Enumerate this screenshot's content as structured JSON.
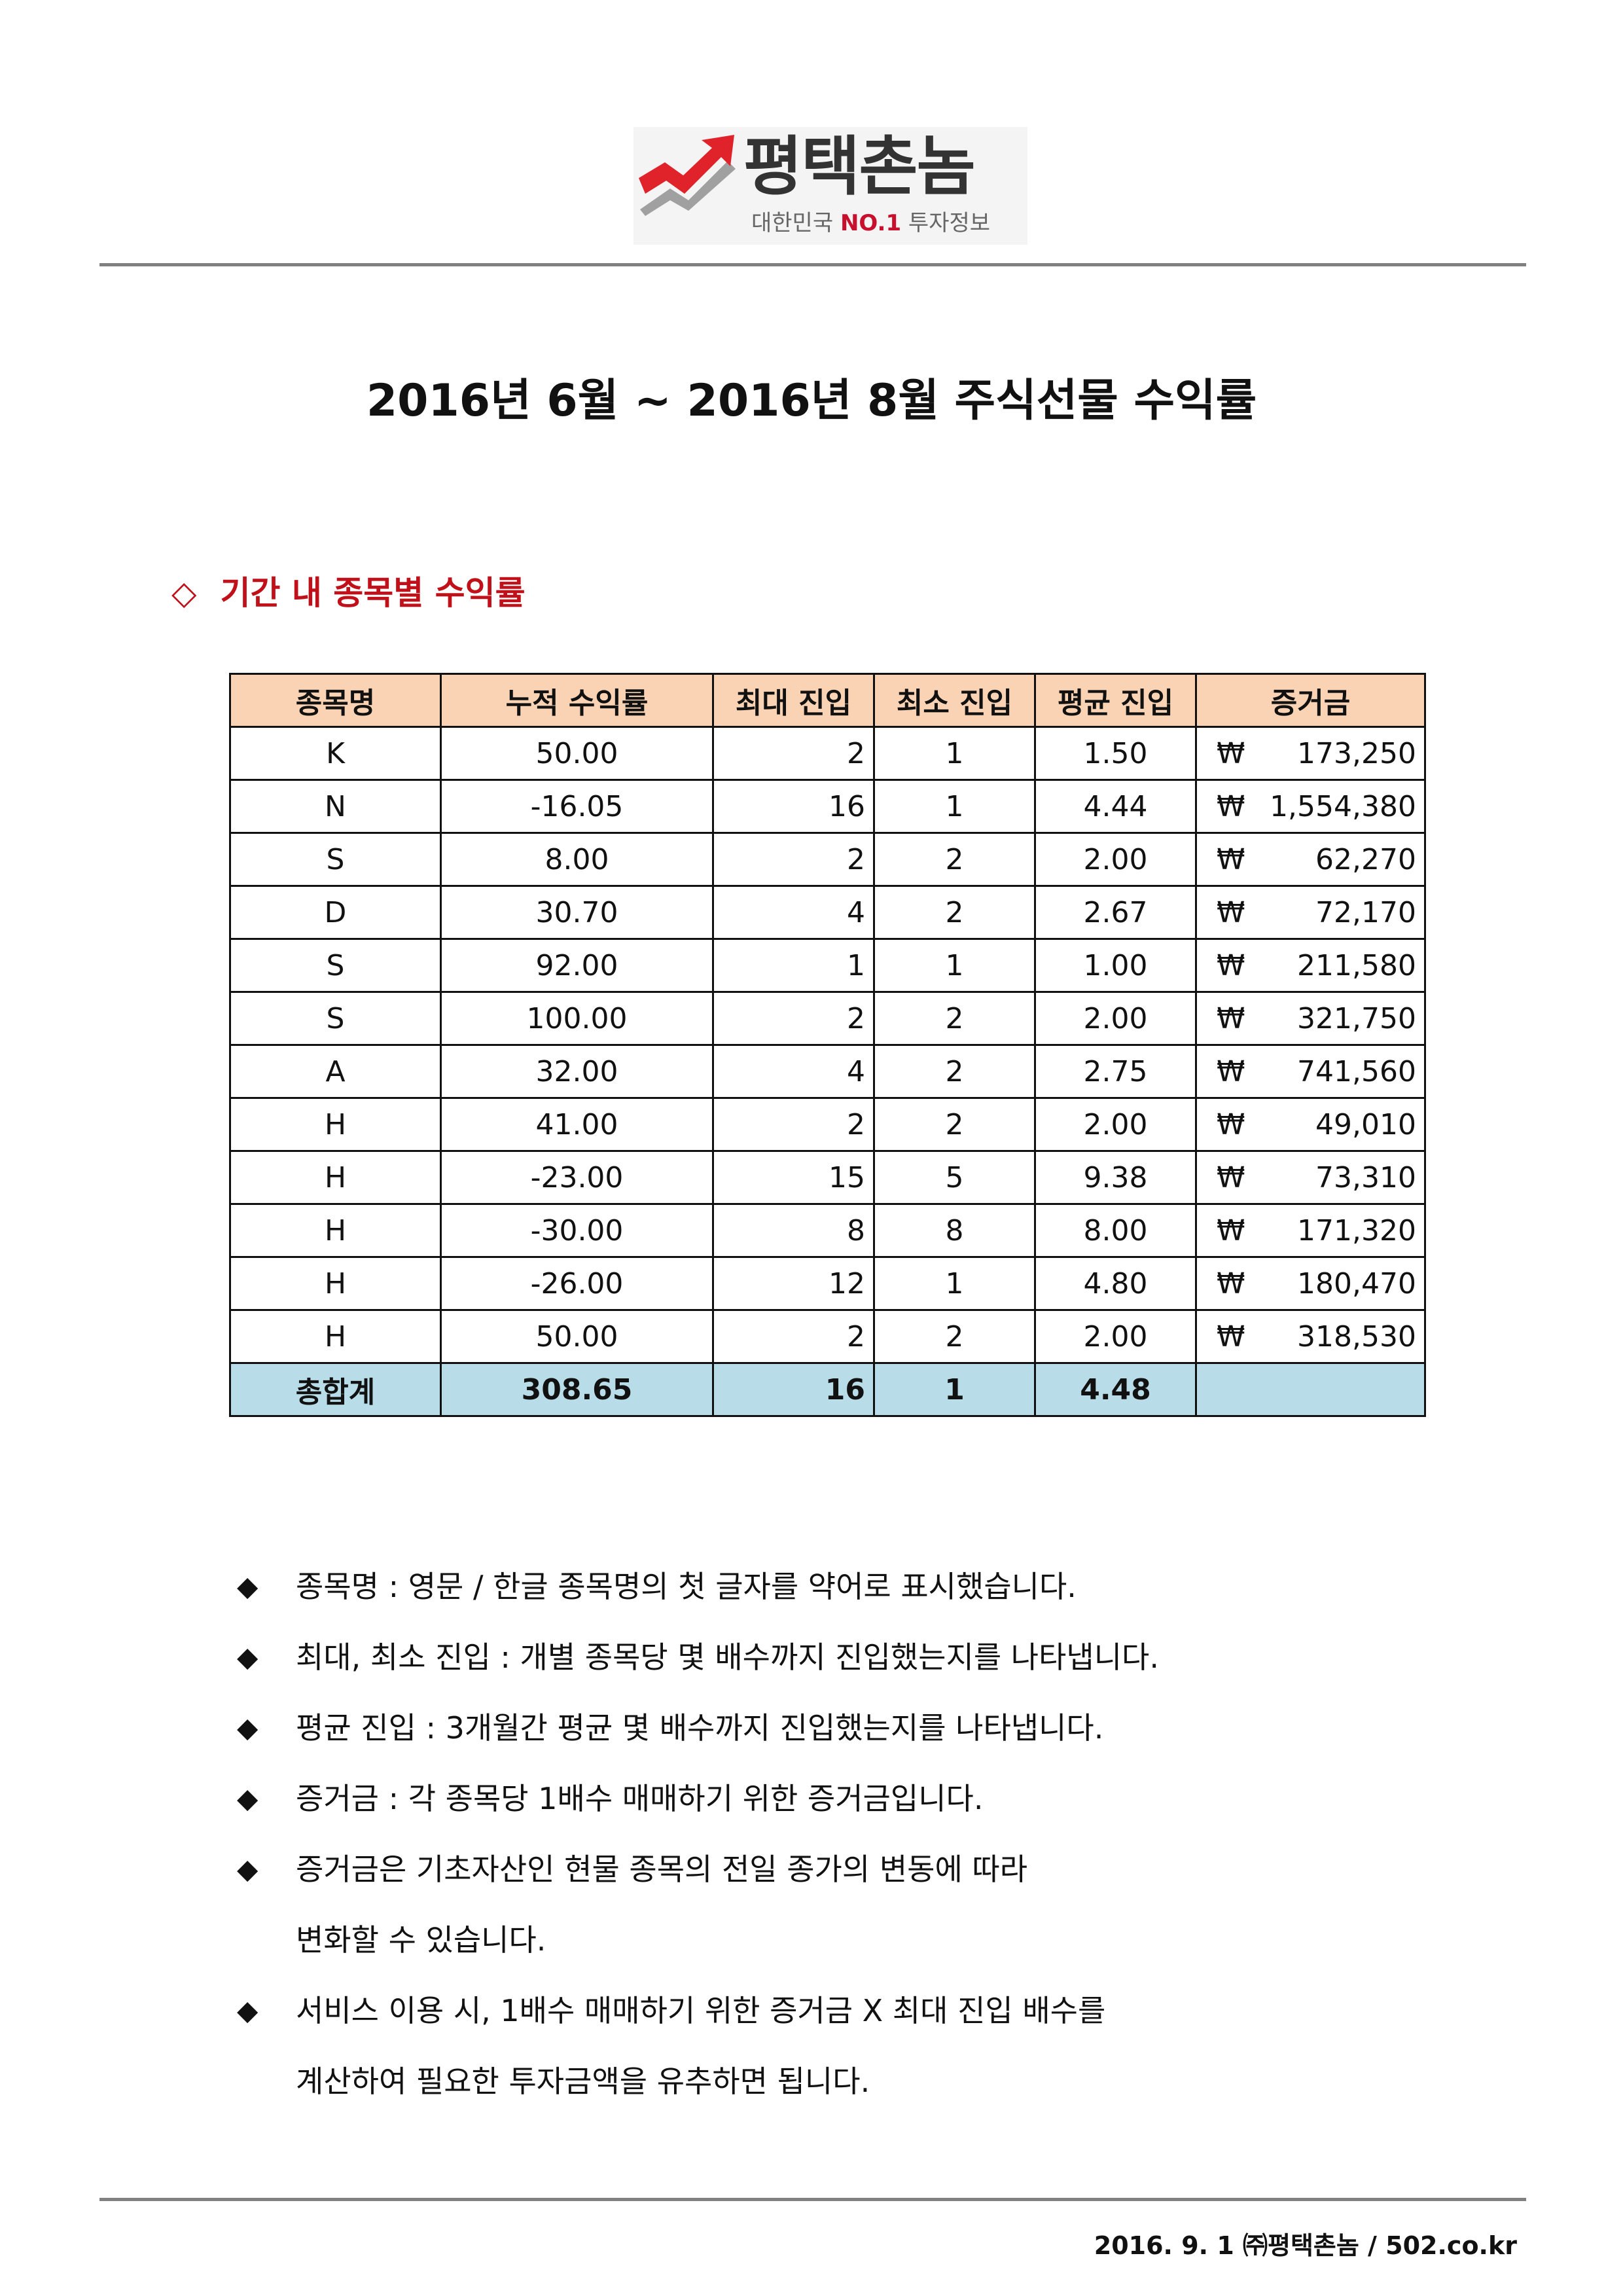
{
  "logo": {
    "name": "평택촌놈",
    "tagline_pre": "대한민국 ",
    "tagline_accent": "NO.1",
    "tagline_post": " 투자정보",
    "colors": {
      "arrow": "#e0232b",
      "shadow": "#a0a0a0",
      "text": "#333333"
    },
    "icon": "upward-arrow-logo-icon"
  },
  "title": "2016년 6월 ~ 2016년 8월 주식선물 수익률",
  "section": {
    "marker": "◇",
    "heading": "기간 내 종목별 수익률"
  },
  "table": {
    "headers": [
      "종목명",
      "누적 수익률",
      "최대 진입",
      "최소 진입",
      "평균 진입",
      "증거금"
    ],
    "currency_symbol": "₩",
    "rows": [
      {
        "name": "K",
        "return": "50.00",
        "max": "2",
        "min": "1",
        "avg": "1.50",
        "margin": "173,250"
      },
      {
        "name": "N",
        "return": "-16.05",
        "max": "16",
        "min": "1",
        "avg": "4.44",
        "margin": "1,554,380"
      },
      {
        "name": "S",
        "return": "8.00",
        "max": "2",
        "min": "2",
        "avg": "2.00",
        "margin": "62,270"
      },
      {
        "name": "D",
        "return": "30.70",
        "max": "4",
        "min": "2",
        "avg": "2.67",
        "margin": "72,170"
      },
      {
        "name": "S",
        "return": "92.00",
        "max": "1",
        "min": "1",
        "avg": "1.00",
        "margin": "211,580"
      },
      {
        "name": "S",
        "return": "100.00",
        "max": "2",
        "min": "2",
        "avg": "2.00",
        "margin": "321,750"
      },
      {
        "name": "A",
        "return": "32.00",
        "max": "4",
        "min": "2",
        "avg": "2.75",
        "margin": "741,560"
      },
      {
        "name": "H",
        "return": "41.00",
        "max": "2",
        "min": "2",
        "avg": "2.00",
        "margin": "49,010"
      },
      {
        "name": "H",
        "return": "-23.00",
        "max": "15",
        "min": "5",
        "avg": "9.38",
        "margin": "73,310"
      },
      {
        "name": "H",
        "return": "-30.00",
        "max": "8",
        "min": "8",
        "avg": "8.00",
        "margin": "171,320"
      },
      {
        "name": "H",
        "return": "-26.00",
        "max": "12",
        "min": "1",
        "avg": "4.80",
        "margin": "180,470"
      },
      {
        "name": "H",
        "return": "50.00",
        "max": "2",
        "min": "2",
        "avg": "2.00",
        "margin": "318,530"
      }
    ],
    "total": {
      "label": "총합계",
      "return": "308.65",
      "max": "16",
      "min": "1",
      "avg": "4.48"
    },
    "colors": {
      "header_bg": "#f9d3b3",
      "total_bg": "#b8dde8"
    }
  },
  "notes": {
    "bullet": "◆",
    "items": [
      "종목명 : 영문 / 한글 종목명의 첫 글자를 약어로 표시했습니다.",
      "최대, 최소 진입 : 개별 종목당 몇 배수까지 진입했는지를 나타냅니다.",
      "평균 진입 : 3개월간 평균 몇 배수까지 진입했는지를 나타냅니다.",
      "증거금 : 각 종목당 1배수 매매하기 위한 증거금입니다.",
      "증거금은 기초자산인 현물 종목의 전일 종가의 변동에 따라\n변화할 수 있습니다.",
      "서비스 이용 시, 1배수 매매하기 위한 증거금 X 최대 진입 배수를\n계산하여 필요한 투자금액을 유추하면 됩니다."
    ]
  },
  "footer": "2016. 9. 1 ㈜평택촌놈 / 502.co.kr"
}
